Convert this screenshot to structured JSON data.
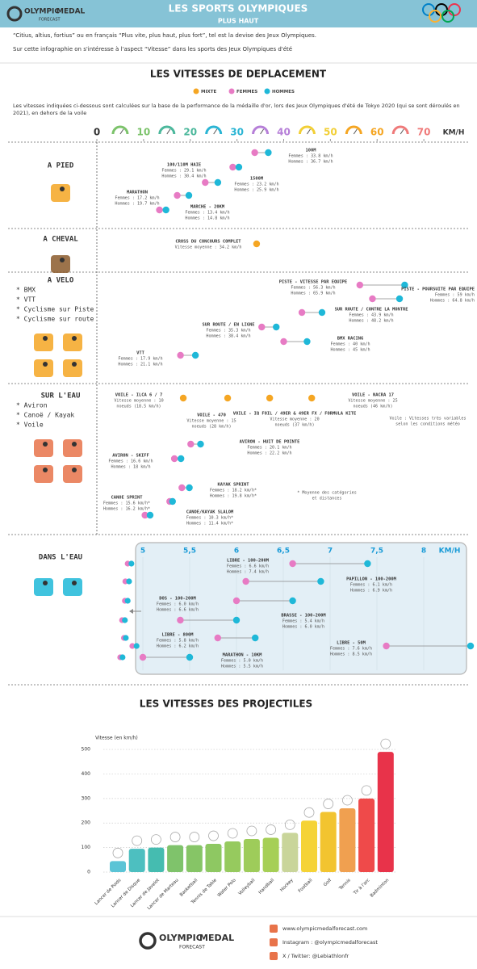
{
  "header": {
    "title": "LES SPORTS OLYMPIQUES",
    "subtitle": "PLUS HAUT"
  },
  "logo": {
    "brand": "OLYMPIC",
    "brand2": "MEDAL",
    "sub": "FORECAST"
  },
  "intro": [
    "“Citius, altius, fortius” ou en français “Plus vite, plus haut, plus fort”, tel est la devise des Jeux Olympiques.",
    "Sur cette infographie on s'intéresse à l'aspect “Vitesse” dans les sports des Jeux Olympiques d'été"
  ],
  "speeds": {
    "title": "LES VITESSES DE DEPLACEMENT",
    "legend": {
      "mixed": "MIXTE",
      "women": "FEMMES",
      "men": "HOMMES"
    },
    "colors": {
      "mixed": "#f5a623",
      "women": "#e77bc4",
      "men": "#1fb8d8"
    },
    "note": "Les vitesses indiquées ci-dessous sont calculées sur la base de la performance de la médaille d'or, lors des Jeux Olympiques d'été de Tokyo 2020 (qui se sont déroulés en 2021), en dehors de la voile",
    "xlim": [
      0,
      80
    ],
    "ticks": [
      0,
      10,
      20,
      30,
      40,
      50,
      60,
      70
    ],
    "tick_colors": [
      "#333333",
      "#7cc36b",
      "#4cb89c",
      "#2bb5d4",
      "#b67fd8",
      "#f2cf36",
      "#f5a623",
      "#ef7a7a"
    ],
    "unit": "KM/H",
    "groups": [
      {
        "name": "A PIED",
        "events": [
          {
            "name": "100M",
            "lines": [
              "Femmes : 33.8 km/h",
              "Hommes : 36.7 km/h"
            ],
            "women": 33.8,
            "men": 36.7
          },
          {
            "name": "100/110M HAIE",
            "lines": [
              "Femmes : 29.1 km/h",
              "Hommes : 30.4 km/h"
            ],
            "women": 29.1,
            "men": 30.4
          },
          {
            "name": "1500M",
            "lines": [
              "Femmes : 23.2 km/h",
              "Hommes : 25.9 km/h"
            ],
            "women": 23.2,
            "men": 25.9
          },
          {
            "name": "MARATHON",
            "lines": [
              "Femmes : 17.2 km/h",
              "Hommes : 19.7 km/h"
            ],
            "women": 17.2,
            "men": 19.7
          },
          {
            "name": "MARCHE - 20KM",
            "lines": [
              "Femmes : 13.4 km/h",
              "Hommes : 14.8 km/h"
            ],
            "women": 13.4,
            "men": 14.8
          }
        ]
      },
      {
        "name": "A CHEVAL",
        "events": [
          {
            "name": "CROSS DU CONCOURS COMPLET",
            "lines": [
              "Vitesse moyenne : 34.2 km/h"
            ],
            "mixed": 34.2
          }
        ]
      },
      {
        "name": "A VELO",
        "items": [
          "* BMX",
          "* VTT",
          "* Cyclisme sur Piste",
          "* Cyclisme sur route"
        ],
        "events": [
          {
            "name": "PISTE - VITESSE PAR EQUIPE",
            "lines": [
              "Femmes : 56.3 km/h",
              "Hommes : 65.9 km/h"
            ],
            "women": 56.3,
            "men": 65.9
          },
          {
            "name": "PISTE - POURSUITE PAR EQUIPE",
            "lines": [
              "Femmes : 59 km/h",
              "Hommes : 64.8 km/h"
            ],
            "women": 59,
            "men": 64.8
          },
          {
            "name": "SUR ROUTE / CONTRE LA MONTRE",
            "lines": [
              "Femmes : 43.9 km/h",
              "Hommes : 48.2 km/h"
            ],
            "women": 43.9,
            "men": 48.2
          },
          {
            "name": "SUR ROUTE / EN LIGNE",
            "lines": [
              "Femmes : 35.3 km/h",
              "Hommes : 38.4 km/h"
            ],
            "women": 35.3,
            "men": 38.4
          },
          {
            "name": "BMX RACING",
            "lines": [
              "Femmes : 40 km/h",
              "Hommes : 45 km/h"
            ],
            "women": 40,
            "men": 45
          },
          {
            "name": "VTT",
            "lines": [
              "Femmes : 17.9 km/h",
              "Hommes : 21.1 km/h"
            ],
            "women": 17.9,
            "men": 21.1
          }
        ]
      },
      {
        "name": "SUR L'EAU",
        "items": [
          "* Aviron",
          "* Canoë / Kayak",
          "* Voile"
        ],
        "notes": [
          "Voile : Vitesses très variables",
          "selon les conditions météo",
          "* Moyenne des catégories",
          "et distances"
        ],
        "events": [
          {
            "name": "VOILE - ILCA 6 / 7",
            "lines": [
              "Vitesse moyenne : 10",
              "noeuds (18.5 km/h)"
            ],
            "mixed": 18.5
          },
          {
            "name": "VOILE - 470",
            "lines": [
              "Vitesse moyenne : 15",
              "noeuds (28 km/h)"
            ],
            "mixed": 28
          },
          {
            "name": "VOILE - IQ FOIL / 49ER & 49ER FX / FORMULA KITE",
            "lines": [
              "Vitesse moyenne : 20",
              "noeuds (37 km/h)"
            ],
            "mixed": 37
          },
          {
            "name": "VOILE - NACRA 17",
            "lines": [
              "Vitesse moyenne : 25",
              "noeuds (46 km/h)"
            ],
            "mixed": 46
          },
          {
            "name": "AVIRON - HUIT DE POINTE",
            "lines": [
              "Femmes : 20.1 km/h",
              "Hommes : 22.2 km/h"
            ],
            "women": 20.1,
            "men": 22.2
          },
          {
            "name": "AVIRON - SKIFF",
            "lines": [
              "Femmes : 16.6 km/h",
              "Hommes : 18 km/h"
            ],
            "women": 16.6,
            "men": 18
          },
          {
            "name": "KAYAK SPRINT",
            "lines": [
              "Femmes : 18.2 km/h*",
              "Hommes : 19.8 km/h*"
            ],
            "women": 18.2,
            "men": 19.8
          },
          {
            "name": "CANOE SPRINT",
            "lines": [
              "Femmes : 15.6 km/h*",
              "Hommes : 16.2 km/h*"
            ],
            "women": 15.6,
            "men": 16.2
          },
          {
            "name": "CANOE/KAYAK SLALOM",
            "lines": [
              "Femmes : 10.3 km/h*",
              "Hommes : 11.4 km/h*"
            ],
            "women": 10.3,
            "men": 11.4
          }
        ]
      },
      {
        "name": "DANS L'EAU",
        "axis": {
          "xlim": [
            5,
            8.5
          ],
          "ticks": [
            5,
            {
              "value": 5.5,
              "label": "5,5"
            },
            6,
            {
              "value": 6.5,
              "label": "6,5"
            },
            7,
            {
              "value": 7.5,
              "label": "7,5"
            },
            8
          ],
          "unit": "KM/H",
          "color": "#1a9bd7"
        },
        "events": [
          {
            "name": "LIBRE - 100-200M",
            "lines": [
              "Femmes : 6.6 km/h",
              "Hommes : 7.4 km/h"
            ],
            "women": 6.6,
            "men": 7.4
          },
          {
            "name": "PAPILLON - 100-200M",
            "lines": [
              "Femmes : 6.1 km/h",
              "Hommes : 6.9 km/h"
            ],
            "women": 6.1,
            "men": 6.9
          },
          {
            "name": "DOS - 100-200M",
            "lines": [
              "Femmes : 6.0 km/h",
              "Hommes : 6.6 km/h"
            ],
            "women": 6.0,
            "men": 6.6
          },
          {
            "name": "BRASSE - 100-200M",
            "lines": [
              "Femmes : 5.4 km/h",
              "Hommes : 6.0 km/h"
            ],
            "women": 5.4,
            "men": 6.0
          },
          {
            "name": "LIBRE - 800M",
            "lines": [
              "Femmes : 5.8 km/h",
              "Hommes : 6.2 km/h"
            ],
            "women": 5.8,
            "men": 6.2
          },
          {
            "name": "LIBRE - 50M",
            "lines": [
              "Femmes : 7.6 km/h",
              "Hommes : 8.5 km/h"
            ],
            "women": 7.6,
            "men": 8.5
          },
          {
            "name": "MARATHON - 10KM",
            "lines": [
              "Femmes : 5.0 km/h",
              "Hommes : 5.5 km/h"
            ],
            "women": 5.0,
            "men": 5.5
          }
        ]
      }
    ]
  },
  "chart_data": {
    "type": "bar",
    "title": "LES VITESSES DES PROJECTILES",
    "y_label": "Vitesse (en km/h)",
    "categories": [
      "Lancer de Poids",
      "Lancer de Disque",
      "Lancer de Javelot",
      "Lancer de Marteau",
      "Basketball",
      "Tennis de Table",
      "Water Polo",
      "Volleyball",
      "Handball",
      "Hockey",
      "Football",
      "Golf",
      "Tennis",
      "Tir à l'arc",
      "Badminton"
    ],
    "values": [
      45,
      95,
      100,
      110,
      110,
      115,
      125,
      135,
      140,
      160,
      210,
      245,
      260,
      300,
      490
    ],
    "colors": [
      "#5bc4d6",
      "#4dbfc0",
      "#45bcb0",
      "#7fc36b",
      "#86c566",
      "#8ec862",
      "#96ca5e",
      "#9ecc5a",
      "#a6cf56",
      "#c9d59a",
      "#f5d336",
      "#f2c430",
      "#f0a050",
      "#ef4a4a",
      "#e8334a"
    ],
    "ylim": [
      0,
      520
    ],
    "yticks": [
      0,
      100,
      200,
      300,
      400,
      500
    ],
    "grid": true
  },
  "footer": {
    "links": [
      "www.olympicmedalforecast.com",
      "Instagram : @olympicmedalforecast",
      "X / Twitter: @Lebiathlonfr"
    ]
  }
}
